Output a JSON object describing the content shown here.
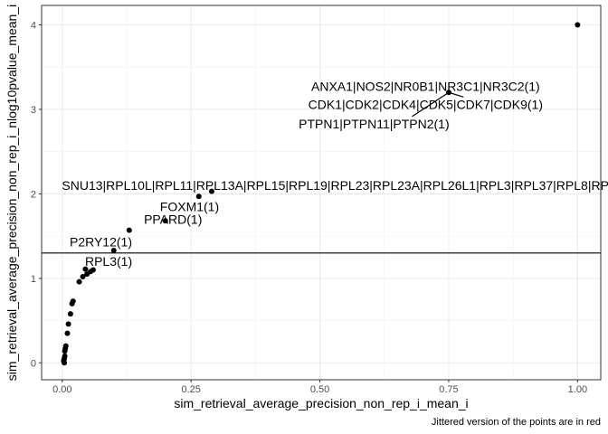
{
  "chart_data": {
    "type": "scatter",
    "xlabel": "sim_retrieval_average_precision_non_rep_i_mean_i",
    "ylabel": "sim_retrieval_average_precision_non_rep_i_nlog10pvalue_mean_i",
    "caption": "Jittered version of the points are in red",
    "xlim": [
      -0.04,
      1.045
    ],
    "ylim": [
      -0.2,
      4.23
    ],
    "x_ticks": [
      0.0,
      0.25,
      0.5,
      0.75,
      1.0
    ],
    "x_tick_labels": [
      "0.00",
      "0.25",
      "0.50",
      "0.75",
      "1.00"
    ],
    "y_ticks": [
      0,
      1,
      2,
      3,
      4
    ],
    "y_tick_labels": [
      "0",
      "1",
      "2",
      "3",
      "4"
    ],
    "grid": true,
    "hline": 1.3,
    "points": [
      {
        "x": 1.0,
        "y": 4.0
      },
      {
        "x": 0.75,
        "y": 3.2
      },
      {
        "x": 0.29,
        "y": 2.03
      },
      {
        "x": 0.265,
        "y": 1.97
      },
      {
        "x": 0.2,
        "y": 1.68
      },
      {
        "x": 0.13,
        "y": 1.57
      },
      {
        "x": 0.1,
        "y": 1.33
      },
      {
        "x": 0.06,
        "y": 1.1
      },
      {
        "x": 0.055,
        "y": 1.08
      },
      {
        "x": 0.048,
        "y": 1.05
      },
      {
        "x": 0.045,
        "y": 1.11
      },
      {
        "x": 0.04,
        "y": 1.02
      },
      {
        "x": 0.033,
        "y": 0.96
      },
      {
        "x": 0.021,
        "y": 0.73
      },
      {
        "x": 0.019,
        "y": 0.7
      },
      {
        "x": 0.016,
        "y": 0.58
      },
      {
        "x": 0.012,
        "y": 0.46
      },
      {
        "x": 0.01,
        "y": 0.35
      },
      {
        "x": 0.007,
        "y": 0.2
      },
      {
        "x": 0.006,
        "y": 0.17
      },
      {
        "x": 0.005,
        "y": 0.14
      },
      {
        "x": 0.005,
        "y": 0.08
      },
      {
        "x": 0.004,
        "y": 0.05
      },
      {
        "x": 0.003,
        "y": 0.02
      },
      {
        "x": 0.004,
        "y": 0.0
      },
      {
        "x": 0.003,
        "y": 0.03
      }
    ],
    "labels": [
      {
        "text": "ANXA1|NOS2|NR0B1|NR3C1|NR3C2(1)",
        "x": 0.75,
        "y": 3.2,
        "label_x": 0.705,
        "label_y": 3.27
      },
      {
        "text": "CDK1|CDK2|CDK4|CDK5|CDK7|CDK9(1)",
        "x": 0.75,
        "y": 3.2,
        "label_x": 0.705,
        "label_y": 3.06
      },
      {
        "text": "PTPN1|PTPN11|PTPN2(1)",
        "x": 0.75,
        "y": 3.2,
        "label_x": 0.605,
        "label_y": 2.83
      },
      {
        "text": "SNU13|RPL10L|RPL11|RPL13A|RPL15|RPL19|RPL23|RPL23A|RPL26L1|RPL3|RPL37|RPL8|RP",
        "x": 0.29,
        "y": 2.03,
        "label_x": 0.53,
        "label_y": 2.1
      },
      {
        "text": "FOXM1(1)",
        "x": 0.265,
        "y": 1.97,
        "label_x": 0.247,
        "label_y": 1.85
      },
      {
        "text": "PPARD(1)",
        "x": 0.2,
        "y": 1.68,
        "label_x": 0.215,
        "label_y": 1.7
      },
      {
        "text": "P2RY12(1)",
        "x": 0.1,
        "y": 1.33,
        "label_x": 0.075,
        "label_y": 1.43
      },
      {
        "text": "RPL3(1)",
        "x": 0.1,
        "y": 1.33,
        "label_x": 0.09,
        "label_y": 1.2
      }
    ]
  }
}
